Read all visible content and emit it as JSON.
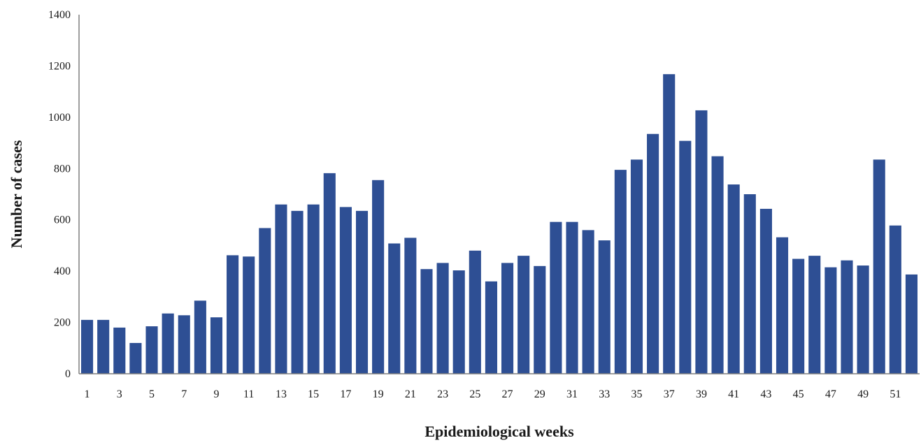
{
  "chart_data": {
    "type": "bar",
    "xlabel": "Epidemiological  weeks",
    "ylabel": "Number of cases",
    "ylim": [
      0,
      1400
    ],
    "yticks": [
      0,
      200,
      400,
      600,
      800,
      1000,
      1200,
      1400
    ],
    "grid": false,
    "bar_color": "#2e4f94",
    "categories": [
      "1",
      "2",
      "3",
      "4",
      "5",
      "6",
      "7",
      "8",
      "9",
      "10",
      "11",
      "12",
      "13",
      "14",
      "15",
      "16",
      "17",
      "18",
      "19",
      "20",
      "21",
      "22",
      "23",
      "24",
      "25",
      "26",
      "27",
      "28",
      "29",
      "30",
      "31",
      "32",
      "33",
      "34",
      "35",
      "36",
      "37",
      "38",
      "39",
      "40",
      "41",
      "42",
      "43",
      "44",
      "45",
      "46",
      "47",
      "48",
      "49",
      "50",
      "51",
      "52"
    ],
    "xtick_labels_shown": [
      "1",
      "3",
      "5",
      "7",
      "9",
      "11",
      "13",
      "15",
      "17",
      "19",
      "21",
      "23",
      "25",
      "27",
      "29",
      "31",
      "33",
      "35",
      "37",
      "39",
      "41",
      "43",
      "45",
      "47",
      "49",
      "51"
    ],
    "values": [
      210,
      210,
      180,
      120,
      185,
      235,
      228,
      285,
      220,
      462,
      457,
      568,
      660,
      635,
      660,
      782,
      650,
      635,
      755,
      508,
      530,
      408,
      432,
      403,
      480,
      360,
      432,
      460,
      420,
      592,
      592,
      560,
      520,
      795,
      835,
      935,
      1168,
      908,
      1027,
      848,
      738,
      700,
      643,
      532,
      448,
      460,
      415,
      442,
      422,
      835,
      578,
      387
    ]
  }
}
